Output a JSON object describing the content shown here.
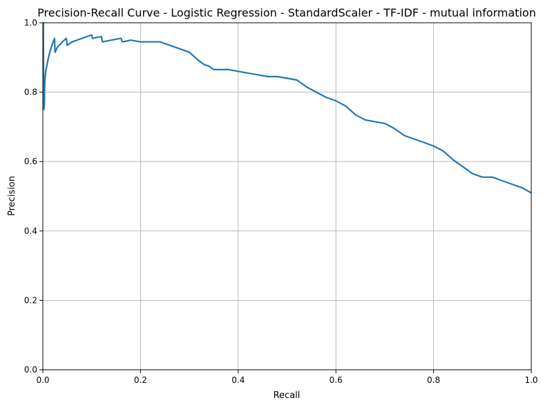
{
  "chart_data": {
    "type": "line",
    "title": "Precision-Recall Curve - Logistic Regression - StandardScaler - TF-IDF - mutual information",
    "xlabel": "Recall",
    "ylabel": "Precision",
    "xlim": [
      0,
      1
    ],
    "ylim": [
      0,
      1
    ],
    "xticks": [
      "0.0",
      "0.2",
      "0.4",
      "0.6",
      "0.8",
      "1.0"
    ],
    "yticks": [
      "0.0",
      "0.2",
      "0.4",
      "0.6",
      "0.8",
      "1.0"
    ],
    "grid": true,
    "line_color": "#1f77b4",
    "series": [
      {
        "x": [
          0.0,
          0.001,
          0.002,
          0.003,
          0.004,
          0.006,
          0.01,
          0.015,
          0.02,
          0.024,
          0.025,
          0.03,
          0.04,
          0.048,
          0.05,
          0.06,
          0.08,
          0.1,
          0.102,
          0.12,
          0.122,
          0.14,
          0.16,
          0.163,
          0.18,
          0.2,
          0.22,
          0.24,
          0.26,
          0.28,
          0.3,
          0.32,
          0.33,
          0.34,
          0.35,
          0.36,
          0.38,
          0.4,
          0.42,
          0.44,
          0.46,
          0.48,
          0.5,
          0.52,
          0.53,
          0.54,
          0.56,
          0.58,
          0.6,
          0.62,
          0.64,
          0.66,
          0.68,
          0.7,
          0.72,
          0.74,
          0.76,
          0.78,
          0.8,
          0.82,
          0.84,
          0.86,
          0.88,
          0.9,
          0.92,
          0.94,
          0.96,
          0.98,
          1.0
        ],
        "y": [
          1.0,
          1.0,
          0.75,
          0.76,
          0.83,
          0.86,
          0.89,
          0.92,
          0.94,
          0.955,
          0.915,
          0.93,
          0.945,
          0.955,
          0.935,
          0.945,
          0.955,
          0.965,
          0.955,
          0.96,
          0.945,
          0.95,
          0.955,
          0.945,
          0.95,
          0.945,
          0.945,
          0.945,
          0.935,
          0.925,
          0.915,
          0.89,
          0.88,
          0.875,
          0.865,
          0.865,
          0.865,
          0.86,
          0.855,
          0.85,
          0.845,
          0.845,
          0.84,
          0.835,
          0.825,
          0.815,
          0.8,
          0.785,
          0.775,
          0.76,
          0.735,
          0.72,
          0.715,
          0.71,
          0.695,
          0.675,
          0.665,
          0.655,
          0.645,
          0.63,
          0.605,
          0.585,
          0.565,
          0.555,
          0.555,
          0.545,
          0.535,
          0.525,
          0.51
        ]
      }
    ]
  }
}
